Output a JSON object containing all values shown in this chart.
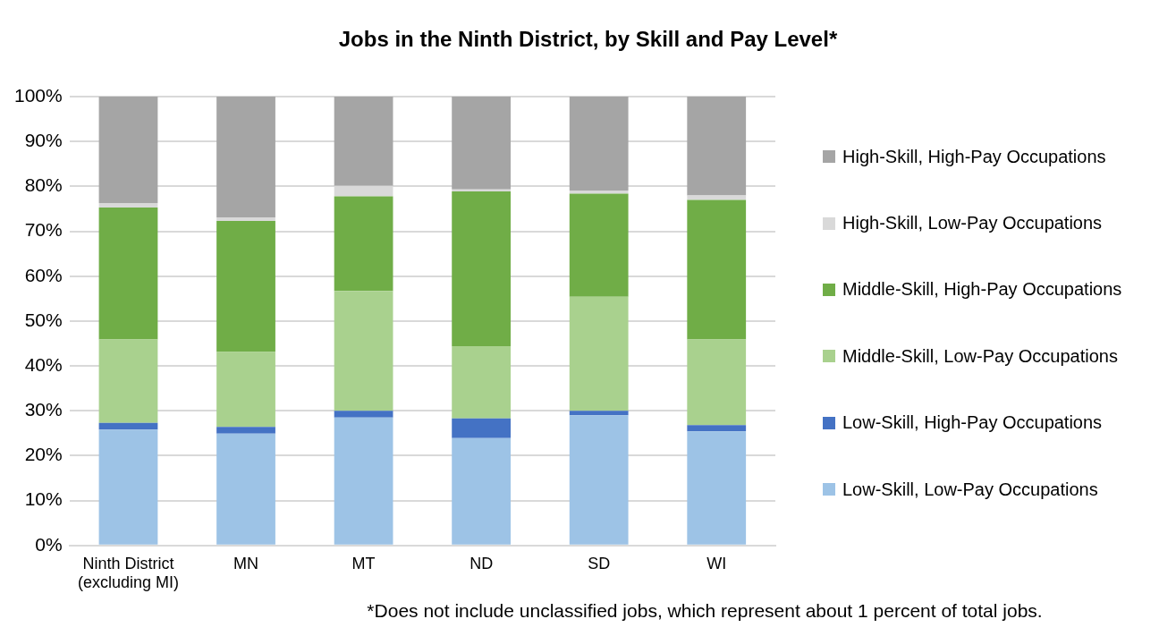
{
  "chart_data": {
    "type": "bar",
    "stacked": true,
    "title": "Jobs in the Ninth District, by Skill and Pay Level*",
    "categories": [
      "Ninth District (excluding MI)",
      "MN",
      "MT",
      "ND",
      "SD",
      "WI"
    ],
    "series": [
      {
        "name": "Low-Skill, Low-Pay Occupations",
        "color": "#9dc3e6",
        "values": [
          25.8,
          24.9,
          28.5,
          23.9,
          29.0,
          25.4
        ]
      },
      {
        "name": "Low-Skill, High-Pay Occupations",
        "color": "#4472c4",
        "values": [
          1.5,
          1.5,
          1.5,
          4.4,
          1.0,
          1.4
        ]
      },
      {
        "name": "Middle-Skill, Low-Pay Occupations",
        "color": "#a9d18e",
        "values": [
          18.6,
          16.7,
          26.7,
          16.1,
          25.4,
          19.1
        ]
      },
      {
        "name": "Middle-Skill, High-Pay Occupations",
        "color": "#70ad47",
        "values": [
          29.4,
          29.2,
          21.1,
          34.5,
          23.0,
          31.1
        ]
      },
      {
        "name": "High-Skill, Low-Pay Occupations",
        "color": "#d9d9d9",
        "values": [
          1.0,
          0.8,
          2.3,
          0.4,
          0.7,
          1.0
        ]
      },
      {
        "name": "High-Skill, High-Pay Occupations",
        "color": "#a5a5a5",
        "values": [
          23.7,
          26.9,
          19.9,
          20.7,
          20.9,
          22.0
        ]
      }
    ],
    "ylim": [
      0,
      100
    ],
    "yticks": [
      {
        "value": 0,
        "label": "0%"
      },
      {
        "value": 10,
        "label": "10%"
      },
      {
        "value": 20,
        "label": "20%"
      },
      {
        "value": 30,
        "label": "30%"
      },
      {
        "value": 40,
        "label": "40%"
      },
      {
        "value": 50,
        "label": "50%"
      },
      {
        "value": 60,
        "label": "60%"
      },
      {
        "value": 70,
        "label": "70%"
      },
      {
        "value": 80,
        "label": "80%"
      },
      {
        "value": 90,
        "label": "90%"
      },
      {
        "value": 100,
        "label": "100%"
      }
    ],
    "grid": "y",
    "legend": "right",
    "annotations": [
      "*Does not include unclassified jobs, which represent about 1 percent of total jobs."
    ]
  }
}
